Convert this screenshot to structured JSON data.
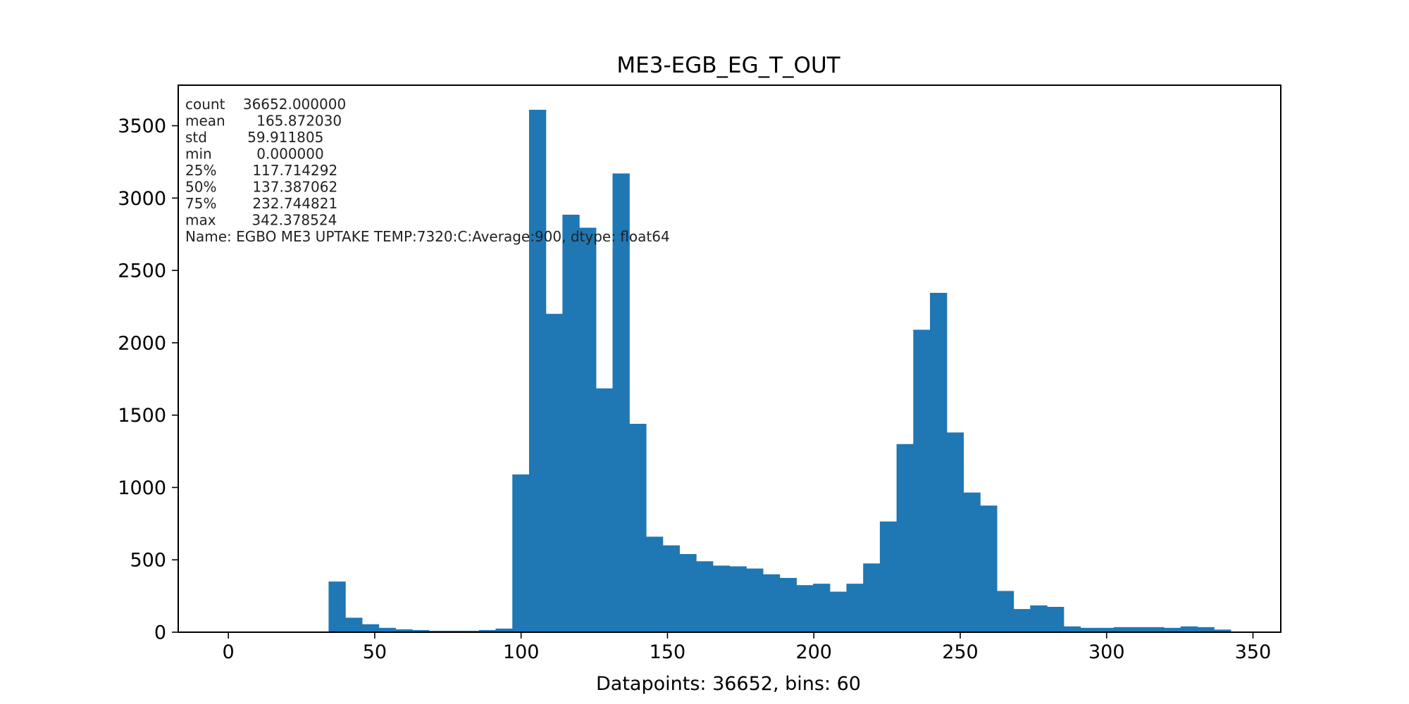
{
  "chart_data": {
    "type": "bar",
    "title": "ME3-EGB_EG_T_OUT",
    "xlabel": "Datapoints: 36652, bins: 60",
    "ylabel": "",
    "xlim": [
      -17.1189,
      359.4974
    ],
    "ylim": [
      0,
      3780
    ],
    "grid": false,
    "bar_color": "#1f77b4",
    "x_ticks": [
      0,
      50,
      100,
      150,
      200,
      250,
      300,
      350
    ],
    "y_ticks": [
      0,
      500,
      1000,
      1500,
      2000,
      2500,
      3000,
      3500
    ],
    "bin_start": 0.0,
    "bin_width": 5.70630873,
    "values": [
      0,
      0,
      0,
      0,
      0,
      3,
      350,
      100,
      55,
      30,
      20,
      15,
      10,
      10,
      10,
      15,
      25,
      1090,
      3610,
      2200,
      2885,
      2795,
      1685,
      3170,
      1440,
      660,
      600,
      540,
      490,
      460,
      455,
      440,
      400,
      375,
      325,
      335,
      280,
      335,
      475,
      765,
      1300,
      2090,
      2345,
      1380,
      965,
      875,
      285,
      160,
      185,
      175,
      40,
      30,
      30,
      35,
      35,
      35,
      30,
      40,
      35,
      18
    ],
    "stats_lines": [
      "count    36652.000000",
      "mean       165.872030",
      "std         59.911805",
      "min          0.000000",
      "25%        117.714292",
      "50%        137.387062",
      "75%        232.744821",
      "max        342.378524",
      "Name: EGBO ME3 UPTAKE TEMP:7320:C:Average:900, dtype: float64"
    ]
  }
}
